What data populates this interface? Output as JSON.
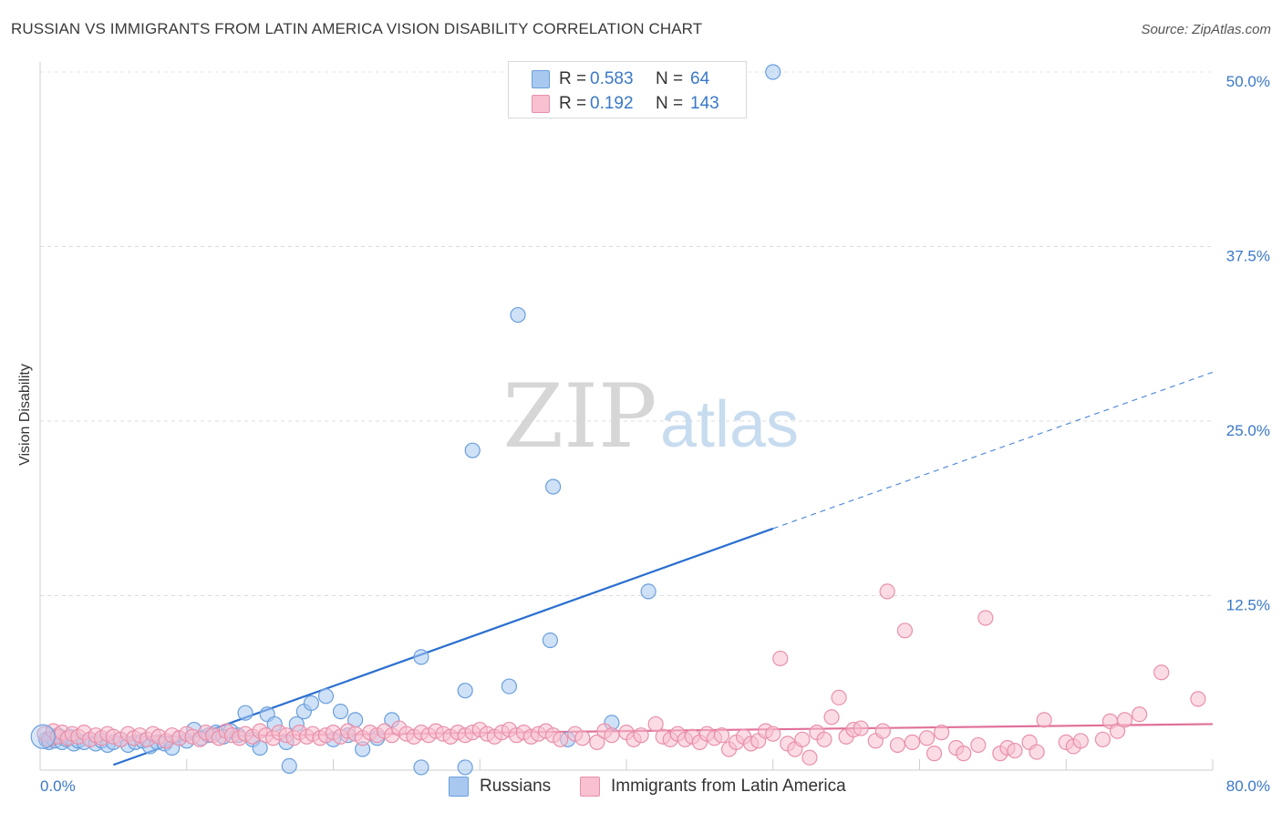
{
  "title": "RUSSIAN VS IMMIGRANTS FROM LATIN AMERICA VISION DISABILITY CORRELATION CHART",
  "source": "Source: ZipAtlas.com",
  "watermark": {
    "part1": "ZIP",
    "part2": "atlas"
  },
  "legend_top": {
    "rows": [
      {
        "r_label": "R =",
        "r_value": "0.583",
        "n_label": "N =",
        "n_value": "64",
        "color": "#a8c8f0",
        "border": "#6a9fdc"
      },
      {
        "r_label": "R =",
        "r_value": "0.192",
        "n_label": "N =",
        "n_value": "143",
        "color": "#f8c0d0",
        "border": "#e890aa"
      }
    ]
  },
  "legend_bottom": [
    {
      "label": "Russians",
      "color": "#a8c8f0",
      "border": "#6a9fdc"
    },
    {
      "label": "Immigrants from Latin America",
      "color": "#f8c0d0",
      "border": "#e890aa"
    }
  ],
  "chart_data": {
    "type": "scatter",
    "title": "RUSSIAN VS IMMIGRANTS FROM LATIN AMERICA VISION DISABILITY CORRELATION CHART",
    "xlabel": "",
    "ylabel": "Vision Disability",
    "xlim": [
      0,
      80
    ],
    "ylim": [
      0,
      52
    ],
    "x_tick_labels": [
      "0.0%",
      "80.0%"
    ],
    "y_ticks": [
      12.5,
      25.0,
      37.5,
      50.0
    ],
    "y_tick_labels": [
      "12.5%",
      "25.0%",
      "37.5%",
      "50.0%"
    ],
    "grid": true,
    "series": [
      {
        "name": "Russians",
        "color": "#6a9fdc",
        "fill": "#a8c8f0",
        "trend": {
          "x0": 0,
          "y0": -1.5,
          "x1": 50,
          "y1": 17.3,
          "dash_to_x": 80,
          "dash_to_y": 28.5,
          "color": "#2a6fd0"
        },
        "points": [
          [
            0.4,
            2.2
          ],
          [
            0.6,
            2.0
          ],
          [
            0.8,
            2.3
          ],
          [
            1.0,
            2.1
          ],
          [
            1.2,
            2.5
          ],
          [
            1.5,
            2.0
          ],
          [
            1.8,
            2.2
          ],
          [
            2.0,
            2.4
          ],
          [
            2.3,
            1.9
          ],
          [
            2.6,
            2.1
          ],
          [
            3.0,
            2.0
          ],
          [
            3.4,
            2.2
          ],
          [
            3.8,
            1.9
          ],
          [
            4.2,
            2.1
          ],
          [
            4.6,
            1.8
          ],
          [
            5.0,
            2.0
          ],
          [
            5.5,
            2.2
          ],
          [
            6.0,
            1.8
          ],
          [
            6.5,
            2.0
          ],
          [
            7.0,
            2.1
          ],
          [
            7.5,
            1.7
          ],
          [
            8.0,
            2.0
          ],
          [
            8.5,
            1.9
          ],
          [
            9.0,
            1.6
          ],
          [
            9.5,
            2.3
          ],
          [
            10.0,
            2.1
          ],
          [
            10.5,
            2.9
          ],
          [
            11.0,
            2.3
          ],
          [
            11.5,
            2.5
          ],
          [
            12.0,
            2.7
          ],
          [
            12.5,
            2.4
          ],
          [
            13.0,
            2.8
          ],
          [
            13.5,
            2.5
          ],
          [
            14.0,
            4.1
          ],
          [
            14.5,
            2.2
          ],
          [
            15.0,
            1.6
          ],
          [
            15.5,
            4.0
          ],
          [
            16.0,
            3.3
          ],
          [
            17.0,
            0.3
          ],
          [
            16.8,
            2.0
          ],
          [
            17.5,
            3.3
          ],
          [
            18.0,
            4.2
          ],
          [
            18.5,
            4.8
          ],
          [
            19.5,
            5.3
          ],
          [
            20.0,
            2.2
          ],
          [
            20.5,
            4.2
          ],
          [
            21.0,
            2.5
          ],
          [
            21.5,
            3.6
          ],
          [
            22.0,
            1.5
          ],
          [
            23.0,
            2.3
          ],
          [
            24.0,
            3.6
          ],
          [
            26.0,
            0.2
          ],
          [
            26.0,
            8.1
          ],
          [
            29.0,
            0.2
          ],
          [
            29.0,
            5.7
          ],
          [
            29.5,
            22.9
          ],
          [
            32.0,
            6.0
          ],
          [
            32.6,
            32.6
          ],
          [
            34.8,
            9.3
          ],
          [
            35.0,
            20.3
          ],
          [
            36.0,
            2.2
          ],
          [
            39.0,
            3.4
          ],
          [
            41.5,
            12.8
          ],
          [
            50.0,
            50.0
          ]
        ]
      },
      {
        "name": "Immigrants from Latin America",
        "color": "#e890aa",
        "fill": "#f8c0d0",
        "trend": {
          "x0": 0,
          "y0": 2.3,
          "x1": 80,
          "y1": 3.3,
          "color": "#e0709a"
        },
        "points": [
          [
            0.3,
            2.6
          ],
          [
            0.6,
            2.2
          ],
          [
            0.9,
            2.8
          ],
          [
            1.2,
            2.4
          ],
          [
            1.5,
            2.7
          ],
          [
            1.9,
            2.3
          ],
          [
            2.2,
            2.6
          ],
          [
            2.6,
            2.4
          ],
          [
            3.0,
            2.7
          ],
          [
            3.4,
            2.2
          ],
          [
            3.8,
            2.5
          ],
          [
            4.2,
            2.3
          ],
          [
            4.6,
            2.6
          ],
          [
            5.0,
            2.4
          ],
          [
            5.5,
            2.2
          ],
          [
            6.0,
            2.6
          ],
          [
            6.4,
            2.3
          ],
          [
            6.8,
            2.5
          ],
          [
            7.3,
            2.2
          ],
          [
            7.7,
            2.6
          ],
          [
            8.1,
            2.4
          ],
          [
            8.6,
            2.1
          ],
          [
            9.0,
            2.5
          ],
          [
            9.5,
            2.3
          ],
          [
            10.0,
            2.6
          ],
          [
            10.4,
            2.4
          ],
          [
            10.9,
            2.2
          ],
          [
            11.3,
            2.7
          ],
          [
            11.8,
            2.5
          ],
          [
            12.2,
            2.3
          ],
          [
            12.7,
            2.8
          ],
          [
            13.1,
            2.5
          ],
          [
            13.6,
            2.3
          ],
          [
            14.0,
            2.6
          ],
          [
            14.5,
            2.4
          ],
          [
            15.0,
            2.8
          ],
          [
            15.4,
            2.5
          ],
          [
            15.9,
            2.3
          ],
          [
            16.3,
            2.7
          ],
          [
            16.8,
            2.5
          ],
          [
            17.3,
            2.3
          ],
          [
            17.7,
            2.7
          ],
          [
            18.2,
            2.4
          ],
          [
            18.6,
            2.6
          ],
          [
            19.1,
            2.3
          ],
          [
            19.5,
            2.5
          ],
          [
            20.0,
            2.7
          ],
          [
            20.5,
            2.4
          ],
          [
            21.0,
            2.8
          ],
          [
            21.5,
            2.6
          ],
          [
            22.0,
            2.3
          ],
          [
            22.5,
            2.7
          ],
          [
            23.0,
            2.5
          ],
          [
            23.5,
            2.8
          ],
          [
            24.0,
            2.5
          ],
          [
            24.5,
            3.0
          ],
          [
            25.0,
            2.6
          ],
          [
            25.5,
            2.4
          ],
          [
            26.0,
            2.7
          ],
          [
            26.5,
            2.5
          ],
          [
            27.0,
            2.8
          ],
          [
            27.5,
            2.6
          ],
          [
            28.0,
            2.4
          ],
          [
            28.5,
            2.7
          ],
          [
            29.0,
            2.5
          ],
          [
            29.5,
            2.7
          ],
          [
            30.0,
            2.9
          ],
          [
            30.5,
            2.6
          ],
          [
            31.0,
            2.4
          ],
          [
            31.5,
            2.7
          ],
          [
            32.0,
            2.9
          ],
          [
            32.5,
            2.5
          ],
          [
            33.0,
            2.7
          ],
          [
            33.5,
            2.4
          ],
          [
            34.0,
            2.6
          ],
          [
            34.5,
            2.8
          ],
          [
            35.0,
            2.5
          ],
          [
            35.5,
            2.2
          ],
          [
            36.5,
            2.6
          ],
          [
            37.0,
            2.3
          ],
          [
            38.0,
            2.0
          ],
          [
            38.5,
            2.8
          ],
          [
            39.0,
            2.5
          ],
          [
            40.0,
            2.7
          ],
          [
            40.5,
            2.2
          ],
          [
            41.0,
            2.5
          ],
          [
            42.0,
            3.3
          ],
          [
            42.5,
            2.4
          ],
          [
            43.0,
            2.2
          ],
          [
            43.5,
            2.6
          ],
          [
            44.0,
            2.2
          ],
          [
            44.5,
            2.4
          ],
          [
            45.0,
            2.0
          ],
          [
            45.5,
            2.6
          ],
          [
            46.0,
            2.3
          ],
          [
            46.5,
            2.5
          ],
          [
            47.0,
            1.5
          ],
          [
            47.5,
            2.0
          ],
          [
            48.0,
            2.4
          ],
          [
            48.5,
            1.9
          ],
          [
            49.0,
            2.1
          ],
          [
            49.5,
            2.8
          ],
          [
            50.0,
            2.6
          ],
          [
            50.5,
            8.0
          ],
          [
            51.0,
            1.9
          ],
          [
            51.5,
            1.5
          ],
          [
            52.0,
            2.2
          ],
          [
            52.5,
            0.9
          ],
          [
            53.0,
            2.7
          ],
          [
            53.5,
            2.2
          ],
          [
            54.0,
            3.8
          ],
          [
            54.5,
            5.2
          ],
          [
            55.0,
            2.4
          ],
          [
            55.5,
            2.9
          ],
          [
            56.0,
            3.0
          ],
          [
            57.0,
            2.1
          ],
          [
            57.5,
            2.8
          ],
          [
            57.8,
            12.8
          ],
          [
            58.5,
            1.8
          ],
          [
            59.0,
            10.0
          ],
          [
            59.5,
            2.0
          ],
          [
            60.5,
            2.3
          ],
          [
            61.0,
            1.2
          ],
          [
            61.5,
            2.7
          ],
          [
            62.5,
            1.6
          ],
          [
            63.0,
            1.2
          ],
          [
            64.0,
            1.8
          ],
          [
            64.5,
            10.9
          ],
          [
            65.5,
            1.2
          ],
          [
            66.0,
            1.6
          ],
          [
            66.5,
            1.4
          ],
          [
            67.5,
            2.0
          ],
          [
            68.0,
            1.3
          ],
          [
            68.5,
            3.6
          ],
          [
            70.0,
            2.0
          ],
          [
            70.5,
            1.7
          ],
          [
            71.0,
            2.1
          ],
          [
            72.5,
            2.2
          ],
          [
            73.0,
            3.5
          ],
          [
            73.5,
            2.8
          ],
          [
            74.0,
            3.6
          ],
          [
            75.0,
            4.0
          ],
          [
            76.5,
            7.0
          ],
          [
            79.0,
            5.1
          ]
        ]
      }
    ]
  }
}
